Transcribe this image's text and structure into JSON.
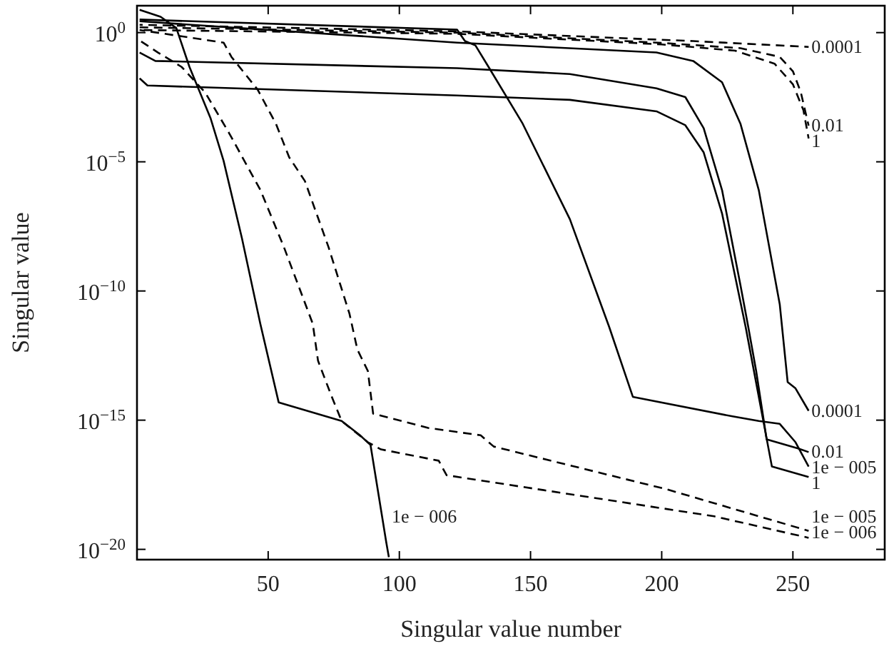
{
  "chart_data": {
    "type": "line",
    "xlabel": "Singular value number",
    "ylabel": "Singular value",
    "log": "y",
    "grid": false,
    "legend": "right",
    "marker": "none",
    "xlim": [
      0,
      285
    ],
    "xticks": [
      50,
      100,
      150,
      200,
      250
    ],
    "ylim": [
      4e-21,
      11
    ],
    "yticks": [
      {
        "value": 1,
        "label": "10$^{0}$"
      },
      {
        "value": 1e-05,
        "label": "10$^{−5}$"
      },
      {
        "value": 1e-10,
        "label": "10$^{−10}$"
      },
      {
        "value": 1e-15,
        "label": "10$^{−15}$"
      },
      {
        "value": 1e-20,
        "label": "10$^{−20}$"
      }
    ],
    "series": [
      {
        "name": "0.01",
        "color": "#000000",
        "line_style": "dashed",
        "x": [
          1,
          122,
          200,
          230,
          245,
          250,
          253,
          256
        ],
        "values": [
          1.6,
          1,
          0.4,
          0.25,
          0.115,
          0.032,
          0.005,
          0.00025
        ]
      },
      {
        "name": "1",
        "color": "#000000",
        "line_style": "dashed",
        "x": [
          1,
          122,
          200,
          228,
          243,
          250,
          254,
          256
        ],
        "values": [
          1.26,
          0.9,
          0.35,
          0.2,
          0.063,
          0.01,
          0.001,
          8e-05
        ]
      },
      {
        "name": "0.0001",
        "color": "#000000",
        "line_style": "solid",
        "x": [
          1,
          122,
          198,
          212,
          223,
          230,
          237,
          245,
          248,
          251,
          256
        ],
        "values": [
          2.75,
          0.41,
          0.17,
          0.08,
          0.012,
          0.0003,
          8e-07,
          3e-11,
          3e-14,
          1.7e-14,
          2.3e-15
        ]
      },
      {
        "name": "0.0001",
        "color": "#000000",
        "line_style": "dashed",
        "x": [
          1,
          122,
          212,
          256
        ],
        "values": [
          2,
          1.12,
          0.47,
          0.28
        ]
      },
      {
        "name": "0.01",
        "color": "#000000",
        "line_style": "solid",
        "x": [
          1,
          7,
          122,
          165,
          198,
          209,
          216,
          223,
          230,
          233,
          236,
          240,
          252,
          256
        ],
        "values": [
          0.17,
          0.08,
          0.042,
          0.025,
          0.007,
          0.0032,
          0.0002,
          8e-07,
          1.7e-10,
          4e-12,
          8e-14,
          1.8e-16,
          8e-17,
          5.8e-17
        ]
      },
      {
        "name": "1e − 005",
        "color": "#000000",
        "line_style": "solid",
        "x": [
          1,
          122,
          125,
          129,
          134,
          147,
          165,
          180,
          189,
          227,
          237,
          245,
          251,
          256
        ],
        "values": [
          3.2,
          1.3,
          0.47,
          0.32,
          0.047,
          0.0003,
          6e-08,
          4e-12,
          8e-15,
          1.4e-15,
          9.3e-16,
          7.2e-16,
          1.4e-16,
          1.6e-17
        ]
      },
      {
        "name": "1",
        "color": "#000000",
        "line_style": "solid",
        "x": [
          1,
          4,
          122,
          165,
          198,
          209,
          216,
          223,
          232,
          242,
          256
        ],
        "values": [
          0.017,
          0.009,
          0.0037,
          0.0025,
          0.0009,
          0.00026,
          2.3e-05,
          1e-07,
          4e-12,
          1.6e-17,
          6.3e-18
        ]
      },
      {
        "name": "1e − 005",
        "color": "#000000",
        "line_style": "dashed",
        "x": [
          1,
          33,
          36,
          46,
          53,
          58,
          64,
          73,
          81,
          84,
          88,
          90,
          111,
          131,
          136,
          202,
          256
        ],
        "values": [
          1.26,
          0.41,
          0.115,
          0.0062,
          0.00029,
          1.5e-05,
          1.8e-06,
          5e-09,
          1.3e-11,
          5.4e-13,
          8e-14,
          1.8e-15,
          5e-16,
          2.6e-16,
          9.5e-17,
          2.1e-18,
          5.2e-20
        ]
      },
      {
        "name": "1e − 006",
        "color": "#000000",
        "line_style": "dashed",
        "x": [
          1,
          8,
          17,
          26,
          35,
          47,
          56,
          67,
          69,
          74,
          78,
          88,
          93,
          115,
          118,
          220,
          256
        ],
        "values": [
          0.5,
          0.17,
          0.047,
          0.0048,
          0.000135,
          8.3e-07,
          5e-09,
          5.4e-12,
          2e-13,
          9.3e-15,
          9.3e-16,
          1.4e-16,
          7.4e-17,
          2.7e-17,
          7.4e-18,
          1.9e-19,
          2.8e-20
        ]
      },
      {
        "name": "1e − 006",
        "color": "#000000",
        "line_style": "solid",
        "x": [
          1,
          9,
          15,
          20,
          28,
          33,
          40,
          47,
          54,
          78,
          85,
          89,
          95,
          96
        ],
        "values": [
          7.6,
          4.1,
          1.5,
          0.047,
          0.0005,
          1.1e-05,
          1.1e-08,
          5.4e-12,
          4.9e-15,
          9.3e-16,
          2.6e-16,
          1.1e-16,
          1.9e-20,
          5e-21
        ]
      }
    ]
  }
}
